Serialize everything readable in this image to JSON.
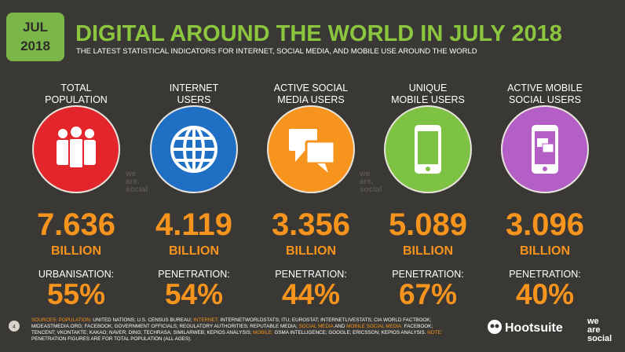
{
  "header": {
    "badge": [
      "JUL",
      "2018"
    ],
    "title": "DIGITAL AROUND THE WORLD IN JULY 2018",
    "subtitle": "THE LATEST STATISTICAL INDICATORS FOR INTERNET, SOCIAL MEDIA, AND MOBILE USE AROUND THE WORLD"
  },
  "columns": [
    {
      "label": [
        "TOTAL",
        "POPULATION"
      ],
      "value": "7.636",
      "unit": "BILLION",
      "metric": "URBANISATION:",
      "metric_value": "55%",
      "color": "#e3262b"
    },
    {
      "label": [
        "INTERNET",
        "USERS"
      ],
      "value": "4.119",
      "unit": "BILLION",
      "metric": "PENETRATION:",
      "metric_value": "54%",
      "color": "#1f6fc4"
    },
    {
      "label": [
        "ACTIVE SOCIAL",
        "MEDIA USERS"
      ],
      "value": "3.356",
      "unit": "BILLION",
      "metric": "PENETRATION:",
      "metric_value": "44%",
      "color": "#f7941d"
    },
    {
      "label": [
        "UNIQUE",
        "MOBILE USERS"
      ],
      "value": "5.089",
      "unit": "BILLION",
      "metric": "PENETRATION:",
      "metric_value": "67%",
      "color": "#7dc242"
    },
    {
      "label": [
        "ACTIVE MOBILE",
        "SOCIAL USERS"
      ],
      "value": "3.096",
      "unit": "BILLION",
      "metric": "PENETRATION:",
      "metric_value": "40%",
      "color": "#b35fc6"
    }
  ],
  "watermark": [
    "we",
    "are.",
    "social"
  ],
  "footer": {
    "page": "4",
    "sources": [
      {
        "text": "SOURCES: POPULATION:",
        "color": "#f7941d"
      },
      {
        "text": " UNITED NATIONS; U.S. CENSUS BUREAU; ",
        "color": "#ffffff"
      },
      {
        "text": "INTERNET:",
        "color": "#f7941d"
      },
      {
        "text": " INTERNETWORLDSTATS; ITU; EUROSTAT; INTERNETLIVESTATS; CIA WORLD FACTBOOK; MIDEASTMEDIA.ORG; FACEBOOK; GOVERNMENT OFFICIALS; REGULATORY AUTHORITIES; REPUTABLE MEDIA; ",
        "color": "#ffffff"
      },
      {
        "text": "SOCIAL MEDIA",
        "color": "#f7941d"
      },
      {
        "text": " AND ",
        "color": "#ffffff"
      },
      {
        "text": "MOBILE SOCIAL MEDIA:",
        "color": "#f7941d"
      },
      {
        "text": " FACEBOOK; TENCENT; VKONTAKTE; KAKAO; NAVER; DING; TECHRASA; SIMILARWEB; KEPIOS ANALYSIS; ",
        "color": "#ffffff"
      },
      {
        "text": "MOBILE:",
        "color": "#f7941d"
      },
      {
        "text": " GSMA INTELLIGENCE; GOOGLE; ERICSSON; KEPIOS ANALYSIS. ",
        "color": "#ffffff"
      },
      {
        "text": "NOTE:",
        "color": "#f7941d"
      },
      {
        "text": " PENETRATION FIGURES ARE FOR TOTAL POPULATION (ALL AGES).",
        "color": "#ffffff"
      }
    ],
    "brand": "Hootsuite",
    "partner": [
      "we",
      "are",
      "social"
    ]
  }
}
